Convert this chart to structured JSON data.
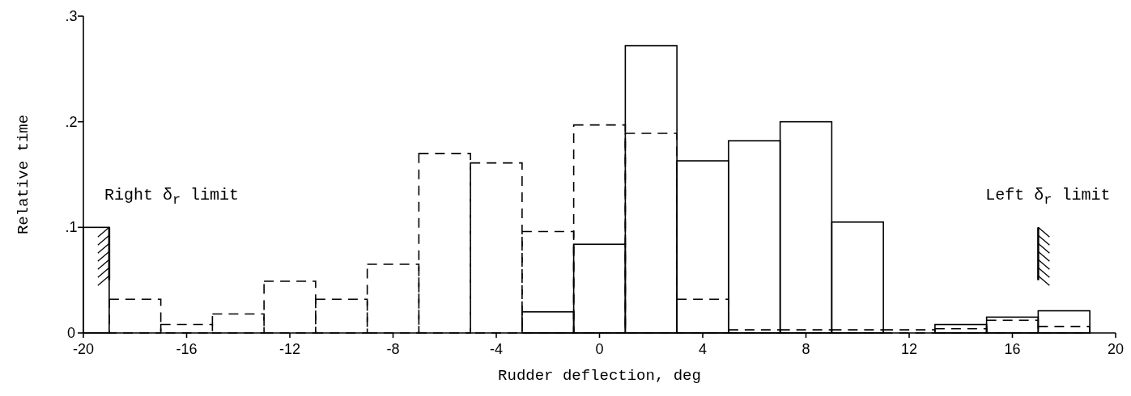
{
  "chart_data": {
    "type": "histogram",
    "xlabel": "Rudder deflection, deg",
    "ylabel": "Relative time",
    "bins": [
      -20,
      -19,
      -17,
      -15,
      -13,
      -11,
      -9,
      -7,
      -5,
      -3,
      -1,
      1,
      3,
      5,
      7,
      9,
      11,
      13,
      15,
      17,
      19
    ],
    "series": [
      {
        "color": "#000000",
        "line_style": "solid",
        "values": [
          0.1,
          0,
          0,
          0,
          0,
          0,
          0,
          0,
          0,
          0.02,
          0.084,
          0.272,
          0.163,
          0.182,
          0.2,
          0.105,
          0,
          0.008,
          0.015,
          0.021
        ]
      },
      {
        "color": "#000000",
        "line_style": "dashed",
        "values": [
          0,
          0.032,
          0.008,
          0.018,
          0.049,
          0.032,
          0.065,
          0.17,
          0.161,
          0.096,
          0.197,
          0.189,
          0.032,
          0.003,
          0.003,
          0.003,
          0.003,
          0.004,
          0.012,
          0.006
        ]
      }
    ],
    "xlim": [
      -20,
      20
    ],
    "ylim": [
      0,
      0.3
    ],
    "xticks": [
      -20,
      -16,
      -12,
      -8,
      -4,
      0,
      4,
      8,
      12,
      16,
      20
    ],
    "yticks": [
      0,
      {
        "value": 0.1,
        "label": ".1"
      },
      {
        "value": 0.2,
        "label": ".2"
      },
      {
        "value": 0.3,
        "label": ".3"
      }
    ],
    "ref_lines": [
      {
        "axis": "x",
        "value": -19,
        "label": "Right δ$_{r}$ limit"
      },
      {
        "axis": "x",
        "value": 17,
        "label": "Left δ$_{r}$ limit"
      }
    ],
    "grid": false
  }
}
